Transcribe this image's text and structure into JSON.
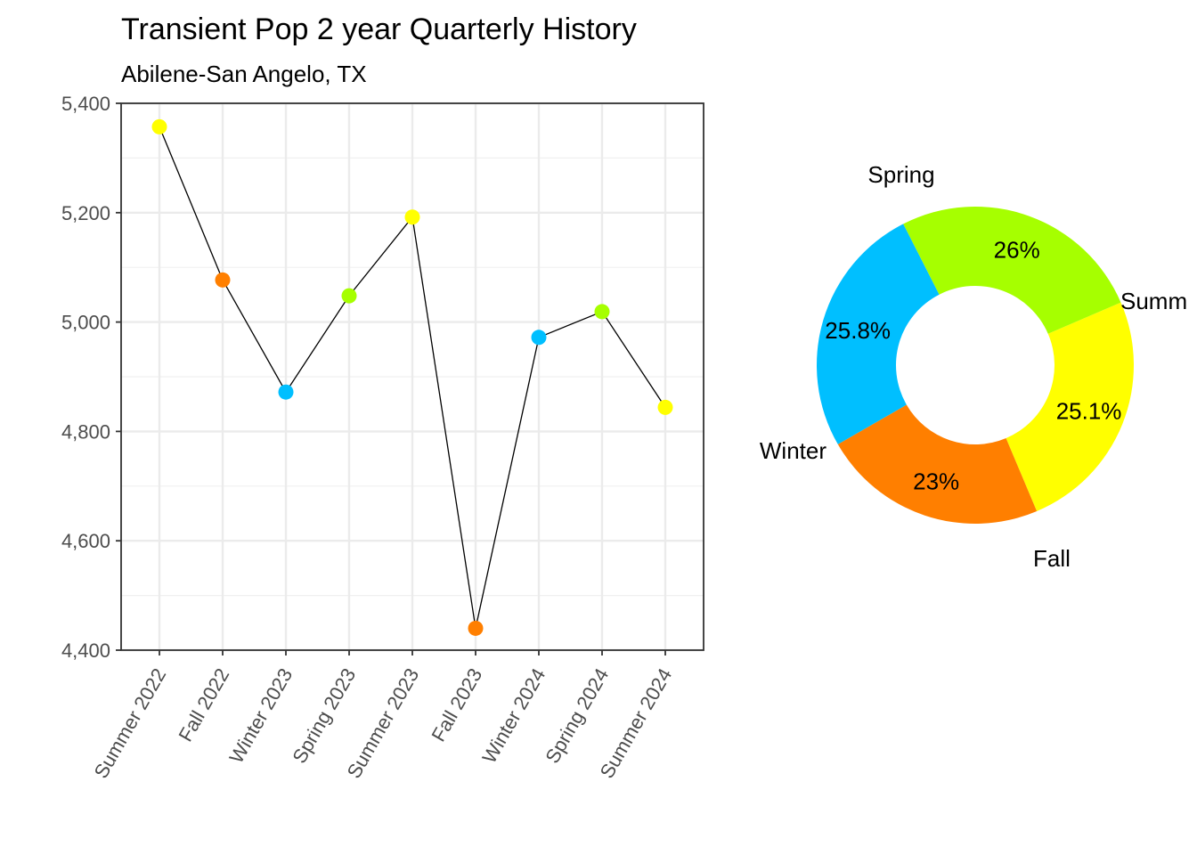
{
  "header": {
    "title": "Transient Pop 2 year Quarterly History",
    "subtitle": "Abilene-San Angelo, TX"
  },
  "season_colors": {
    "Summer": "#FFFF00",
    "Fall": "#FF7F00",
    "Winter": "#00BFFF",
    "Spring": "#A6FF00"
  },
  "chart_data": [
    {
      "type": "line",
      "categories": [
        "Summer 2022",
        "Fall 2022",
        "Winter 2023",
        "Spring 2023",
        "Summer 2023",
        "Fall 2023",
        "Winter 2024",
        "Spring 2024",
        "Summer 2024"
      ],
      "seasons": [
        "Summer",
        "Fall",
        "Winter",
        "Spring",
        "Summer",
        "Fall",
        "Winter",
        "Spring",
        "Summer"
      ],
      "values": [
        5357,
        5077,
        4872,
        5048,
        5192,
        4440,
        4972,
        5019,
        4844
      ],
      "ylim": [
        4400,
        5400
      ],
      "yticks": [
        4400,
        4600,
        4800,
        5000,
        5200,
        5400
      ],
      "ytick_labels": [
        "4,400",
        "4,600",
        "4,800",
        "5,000",
        "5,200",
        "5,400"
      ],
      "grid": true,
      "line_color": "#000000"
    },
    {
      "type": "pie",
      "donut": true,
      "labels": [
        "Summer",
        "Fall",
        "Winter",
        "Spring"
      ],
      "display_labels": [
        "Summ",
        "Fall",
        "Winter",
        "Spring"
      ],
      "values": [
        25.1,
        23.0,
        25.8,
        26.0
      ],
      "value_labels": [
        "25.1%",
        "23%",
        "25.8%",
        "26%"
      ]
    }
  ]
}
